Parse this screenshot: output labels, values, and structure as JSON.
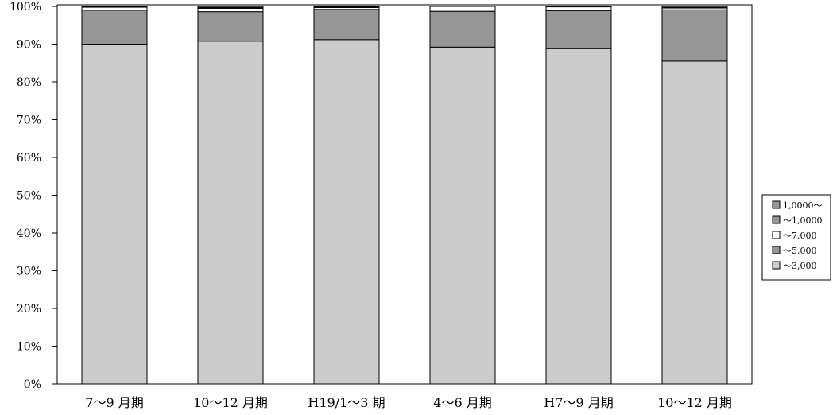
{
  "chart_data": {
    "type": "bar",
    "stacked": true,
    "percent": true,
    "categories": [
      "7～9 月期",
      "10～12 月期",
      "H19/1～3 期",
      "4～6 月期",
      "H7～9 月期",
      "10～12 月期"
    ],
    "series": [
      {
        "name": "～3,000",
        "color": "#cccccc",
        "values": [
          90.0,
          90.8,
          91.2,
          89.2,
          88.8,
          85.5
        ]
      },
      {
        "name": "～5,000",
        "color": "#969696",
        "values": [
          9.0,
          7.8,
          8.0,
          9.5,
          10.1,
          13.6
        ]
      },
      {
        "name": "～7,000",
        "color": "#ffffff",
        "values": [
          0.8,
          0.9,
          0.5,
          1.3,
          1.0,
          0.5
        ]
      },
      {
        "name": "～1,0000",
        "color": "#969696",
        "values": [
          0.1,
          0.2,
          0.2,
          0.0,
          0.1,
          0.1
        ]
      },
      {
        "name": "1,0000～",
        "color": "#969696",
        "values": [
          0.1,
          0.3,
          0.1,
          0.0,
          0.0,
          0.3
        ]
      }
    ],
    "legend_order": [
      "1,0000～",
      "～1,0000",
      "～7,000",
      "～5,000",
      "～3,000"
    ],
    "y_ticks": [
      "0%",
      "10%",
      "20%",
      "30%",
      "40%",
      "50%",
      "60%",
      "70%",
      "80%",
      "90%",
      "100%"
    ],
    "ylim": [
      0,
      100
    ],
    "grid": false,
    "legend_position": "right"
  }
}
